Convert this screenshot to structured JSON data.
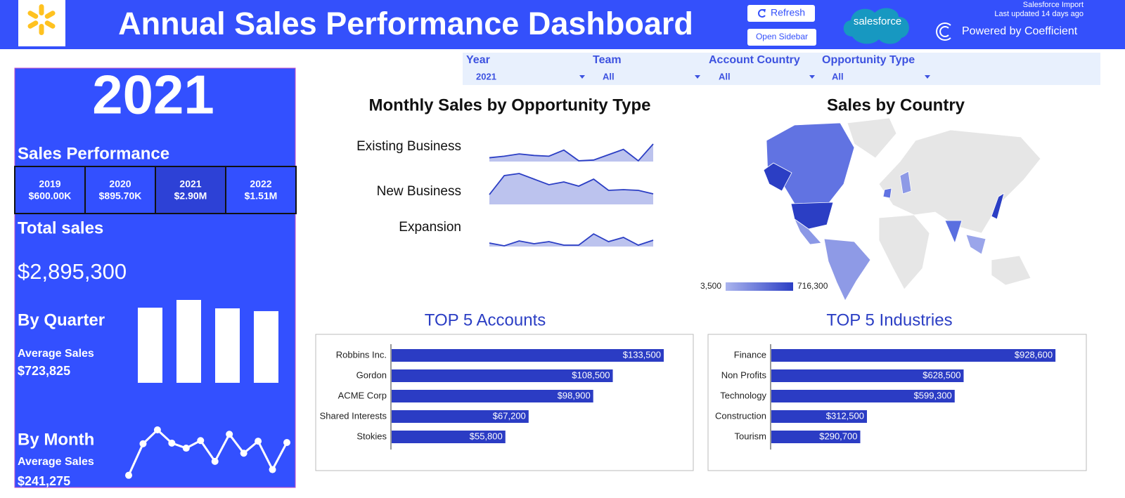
{
  "header": {
    "title": "Annual Sales Performance Dashboard",
    "buttons": [
      "Refresh",
      "Open Sidebar"
    ],
    "brand": "salesforce",
    "source": "Salesforce Import",
    "updated": "Last updated 14 days ago",
    "powered_by": "Powered by Coefficient"
  },
  "filters": [
    {
      "label": "Year",
      "value": "2021"
    },
    {
      "label": "Team",
      "value": "All"
    },
    {
      "label": "Account Country",
      "value": "All"
    },
    {
      "label": "Opportunity Type",
      "value": "All"
    }
  ],
  "summary": {
    "year": "2021",
    "section": "Sales Performance",
    "years": [
      {
        "year": "2019",
        "sales": "$600.00K"
      },
      {
        "year": "2020",
        "sales": "$895.70K"
      },
      {
        "year": "2021",
        "sales": "$2.90M"
      },
      {
        "year": "2022",
        "sales": "$1.51M"
      }
    ],
    "selected_year": 2,
    "total_label": "Total sales",
    "total": "$2,895,300",
    "quarter_label": "By Quarter",
    "quarter_avg_label": "Average Sales",
    "quarter_avg": "$723,825",
    "month_label": "By Month",
    "month_avg_label": "Average Sales",
    "month_avg": "$241,275"
  },
  "chart_data": [
    {
      "type": "column",
      "values": [
        715400,
        789000,
        708700,
        682200
      ],
      "color": "#ffffff"
    },
    {
      "type": "line",
      "values": [
        91800,
        268400,
        346000,
        271900,
        243600,
        286000,
        169500,
        321300,
        215400,
        282500,
        123600,
        275300
      ],
      "color": "#ffffff"
    },
    {
      "type": "sparkline",
      "title": "Monthly Sales by Opportunity Type",
      "fill": "#bcc3ee",
      "series": [
        {
          "name": "Existing Business",
          "color": "#2b3ec4",
          "values": [
            20000,
            28000,
            40000,
            32000,
            28000,
            60000,
            4000,
            8000,
            36000,
            64000,
            4000,
            92000
          ]
        },
        {
          "name": "New Business",
          "color": "#2b3ec4",
          "values": [
            56000,
            164000,
            176000,
            144000,
            112000,
            128000,
            104000,
            144000,
            80000,
            84000,
            80000,
            60000
          ]
        },
        {
          "name": "Expansion",
          "color": "#2b3ec4",
          "values": [
            20000,
            4000,
            32000,
            16000,
            28000,
            8000,
            8000,
            72000,
            28000,
            52000,
            8000,
            36000
          ]
        }
      ]
    },
    {
      "type": "map",
      "title": "Sales by Country",
      "colorscale": {
        "min": {
          "value": 3500,
          "label": "3,500"
        },
        "max": {
          "value": 716300,
          "label": "716,300"
        },
        "colors": [
          "#aab4ee",
          "#2b3ec4"
        ]
      }
    },
    {
      "type": "hbar",
      "title": "TOP 5 Accounts",
      "color": "#2b3cc4",
      "categories": [
        "Robbins Inc.",
        "Gordon",
        "ACME Corp",
        "Shared Interests",
        "Stokies"
      ],
      "values": [
        133500,
        108500,
        98900,
        67200,
        55800
      ],
      "value_labels": [
        "$133,500",
        "$108,500",
        "$98,900",
        "$67,200",
        "$55,800"
      ]
    },
    {
      "type": "hbar",
      "title": "TOP 5 Industries",
      "color": "#2b3cc4",
      "categories": [
        "Finance",
        "Non Profits",
        "Technology",
        "Construction",
        "Tourism"
      ],
      "values": [
        928600,
        628500,
        599300,
        312500,
        290700
      ],
      "value_labels": [
        "$928,600",
        "$628,500",
        "$599,300",
        "$312,500",
        "$290,700"
      ]
    }
  ]
}
